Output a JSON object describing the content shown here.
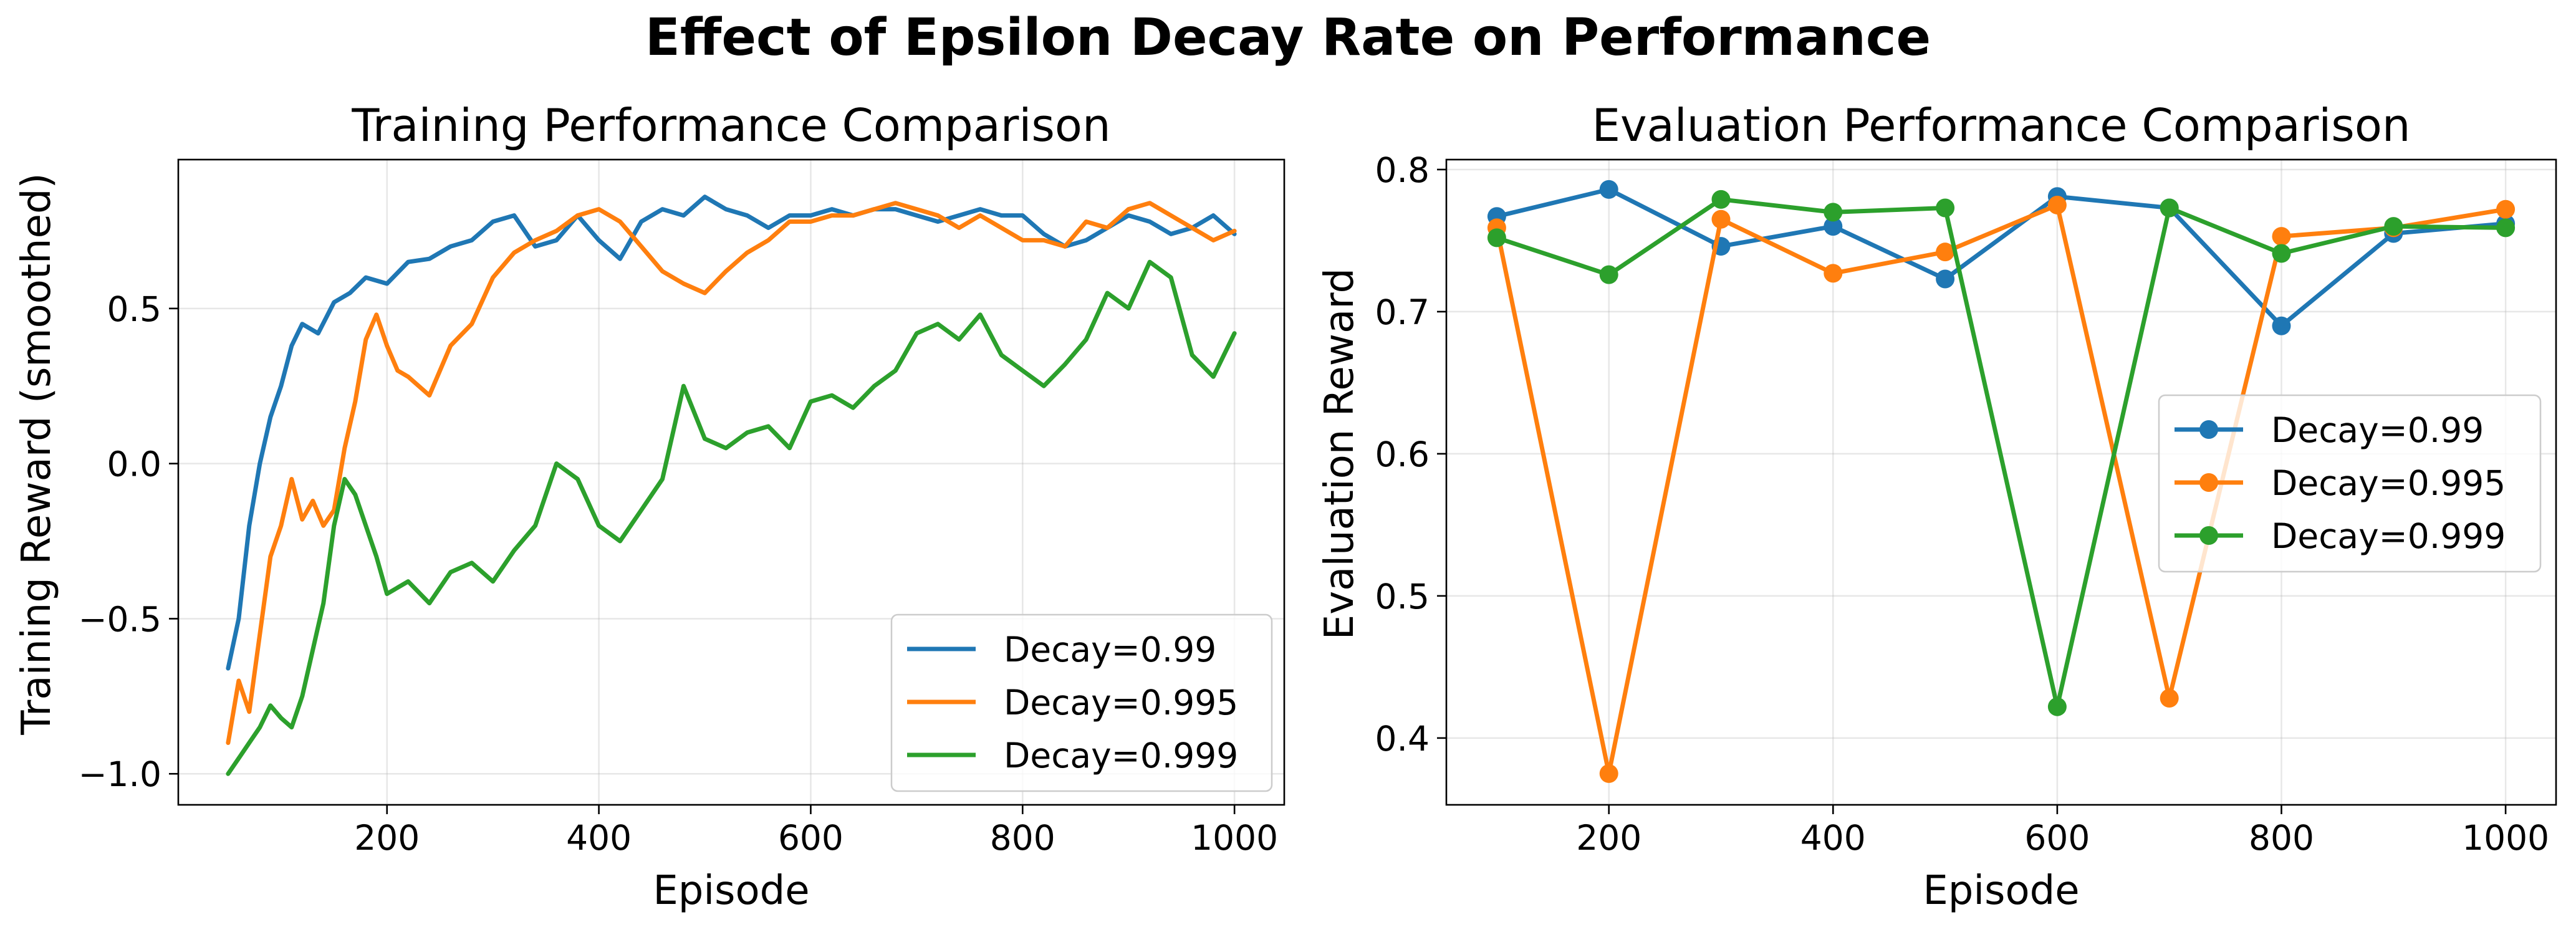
{
  "suptitle": "Effect of Epsilon Decay Rate on Performance",
  "colors": {
    "decay_099": "#1f77b4",
    "decay_0995": "#ff7f0e",
    "decay_0999": "#2ca02c"
  },
  "chart_data": [
    {
      "type": "line",
      "title": "Training Performance Comparison",
      "xlabel": "Episode",
      "ylabel": "Training Reward (smoothed)",
      "xlim": [
        3,
        1047
      ],
      "ylim": [
        -1.1,
        0.98
      ],
      "xticks": [
        200,
        400,
        600,
        800,
        1000
      ],
      "yticks": [
        -1.0,
        -0.5,
        0.0,
        0.5
      ],
      "ytick_labels": [
        "−1.0",
        "−0.5",
        "0.0",
        "0.5"
      ],
      "xtick_labels": [
        "200",
        "400",
        "600",
        "800",
        "1000"
      ],
      "grid": true,
      "legend": "lower-right",
      "series": [
        {
          "name": "Decay=0.99",
          "color": "#1f77b4",
          "x": [
            50,
            60,
            70,
            80,
            90,
            100,
            110,
            120,
            135,
            150,
            165,
            180,
            200,
            220,
            240,
            260,
            280,
            300,
            320,
            340,
            360,
            380,
            400,
            420,
            440,
            460,
            480,
            500,
            520,
            540,
            560,
            580,
            600,
            620,
            640,
            660,
            680,
            700,
            720,
            740,
            760,
            780,
            800,
            820,
            840,
            860,
            880,
            900,
            920,
            940,
            960,
            980,
            1000
          ],
          "y": [
            -0.66,
            -0.5,
            -0.2,
            0.0,
            0.15,
            0.25,
            0.38,
            0.45,
            0.42,
            0.52,
            0.55,
            0.6,
            0.58,
            0.65,
            0.66,
            0.7,
            0.72,
            0.78,
            0.8,
            0.7,
            0.72,
            0.8,
            0.72,
            0.66,
            0.78,
            0.82,
            0.8,
            0.86,
            0.82,
            0.8,
            0.76,
            0.8,
            0.8,
            0.82,
            0.8,
            0.82,
            0.82,
            0.8,
            0.78,
            0.8,
            0.82,
            0.8,
            0.8,
            0.74,
            0.7,
            0.72,
            0.76,
            0.8,
            0.78,
            0.74,
            0.76,
            0.8,
            0.74
          ]
        },
        {
          "name": "Decay=0.995",
          "color": "#ff7f0e",
          "x": [
            50,
            60,
            70,
            80,
            90,
            100,
            110,
            120,
            130,
            140,
            150,
            160,
            170,
            180,
            190,
            200,
            210,
            220,
            240,
            260,
            280,
            300,
            320,
            340,
            360,
            380,
            400,
            420,
            440,
            460,
            480,
            500,
            520,
            540,
            560,
            580,
            600,
            620,
            640,
            660,
            680,
            700,
            720,
            740,
            760,
            780,
            800,
            820,
            840,
            860,
            880,
            900,
            920,
            940,
            960,
            980,
            1000
          ],
          "y": [
            -0.9,
            -0.7,
            -0.8,
            -0.55,
            -0.3,
            -0.2,
            -0.05,
            -0.18,
            -0.12,
            -0.2,
            -0.15,
            0.05,
            0.2,
            0.4,
            0.48,
            0.38,
            0.3,
            0.28,
            0.22,
            0.38,
            0.45,
            0.6,
            0.68,
            0.72,
            0.75,
            0.8,
            0.82,
            0.78,
            0.7,
            0.62,
            0.58,
            0.55,
            0.62,
            0.68,
            0.72,
            0.78,
            0.78,
            0.8,
            0.8,
            0.82,
            0.84,
            0.82,
            0.8,
            0.76,
            0.8,
            0.76,
            0.72,
            0.72,
            0.7,
            0.78,
            0.76,
            0.82,
            0.84,
            0.8,
            0.76,
            0.72,
            0.75
          ]
        },
        {
          "name": "Decay=0.999",
          "color": "#2ca02c",
          "x": [
            50,
            60,
            70,
            80,
            90,
            100,
            110,
            120,
            130,
            140,
            150,
            160,
            170,
            180,
            190,
            200,
            220,
            240,
            260,
            280,
            300,
            320,
            340,
            360,
            380,
            400,
            420,
            440,
            460,
            480,
            500,
            520,
            540,
            560,
            580,
            600,
            620,
            640,
            660,
            680,
            700,
            720,
            740,
            760,
            780,
            800,
            820,
            840,
            860,
            880,
            900,
            920,
            940,
            960,
            980,
            1000
          ],
          "y": [
            -1.0,
            -0.95,
            -0.9,
            -0.85,
            -0.78,
            -0.82,
            -0.85,
            -0.75,
            -0.6,
            -0.45,
            -0.2,
            -0.05,
            -0.1,
            -0.2,
            -0.3,
            -0.42,
            -0.38,
            -0.45,
            -0.35,
            -0.32,
            -0.38,
            -0.28,
            -0.2,
            0.0,
            -0.05,
            -0.2,
            -0.25,
            -0.15,
            -0.05,
            0.25,
            0.08,
            0.05,
            0.1,
            0.12,
            0.05,
            0.2,
            0.22,
            0.18,
            0.25,
            0.3,
            0.42,
            0.45,
            0.4,
            0.48,
            0.35,
            0.3,
            0.25,
            0.32,
            0.4,
            0.55,
            0.5,
            0.65,
            0.6,
            0.35,
            0.28,
            0.42
          ]
        }
      ]
    },
    {
      "type": "line",
      "title": "Evaluation Performance Comparison",
      "xlabel": "Episode",
      "ylabel": "Evaluation Reward",
      "xlim": [
        55,
        1045
      ],
      "ylim": [
        0.353,
        0.807
      ],
      "xticks": [
        200,
        400,
        600,
        800,
        1000
      ],
      "yticks": [
        0.4,
        0.5,
        0.6,
        0.7,
        0.8
      ],
      "xtick_labels": [
        "200",
        "400",
        "600",
        "800",
        "1000"
      ],
      "ytick_labels": [
        "0.4",
        "0.5",
        "0.6",
        "0.7",
        "0.8"
      ],
      "grid": true,
      "legend": "center-right",
      "markers": true,
      "series": [
        {
          "name": "Decay=0.99",
          "color": "#1f77b4",
          "x": [
            100,
            200,
            300,
            400,
            500,
            600,
            700,
            800,
            900,
            1000
          ],
          "y": [
            0.767,
            0.786,
            0.746,
            0.76,
            0.723,
            0.781,
            0.773,
            0.69,
            0.755,
            0.762
          ]
        },
        {
          "name": "Decay=0.995",
          "color": "#ff7f0e",
          "x": [
            100,
            200,
            300,
            400,
            500,
            600,
            700,
            800,
            900,
            1000
          ],
          "y": [
            0.759,
            0.375,
            0.765,
            0.727,
            0.742,
            0.775,
            0.428,
            0.753,
            0.759,
            0.772
          ]
        },
        {
          "name": "Decay=0.999",
          "color": "#2ca02c",
          "x": [
            100,
            200,
            300,
            400,
            500,
            600,
            700,
            800,
            900,
            1000
          ],
          "y": [
            0.752,
            0.726,
            0.779,
            0.77,
            0.773,
            0.422,
            0.773,
            0.741,
            0.76,
            0.759
          ]
        }
      ]
    }
  ]
}
